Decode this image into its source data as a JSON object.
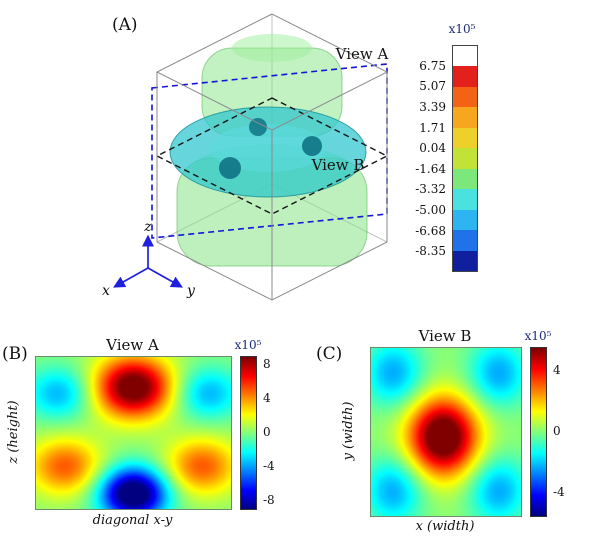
{
  "chart_data": [
    {
      "id": "panel-a-3d",
      "type": "isosurface-3d",
      "panel_label": "(A)",
      "view_a_label": "View A",
      "view_b_label": "View B",
      "axis_triad": {
        "x": "x",
        "y": "y",
        "z": "z"
      },
      "colorbar": {
        "exponent": "x10⁵",
        "ticks": [
          "6.75",
          "5.07",
          "3.39",
          "1.71",
          "0.04",
          "-1.64",
          "-3.32",
          "-5.00",
          "-6.68",
          "-8.35"
        ],
        "segment_colors": [
          "#ffffff",
          "#e2201c",
          "#f26316",
          "#f6a71e",
          "#eed02a",
          "#c3e238",
          "#7ce87c",
          "#49e2df",
          "#2fb4f2",
          "#1f72e8",
          "#101f9e"
        ]
      },
      "accent_colors": {
        "view_a": "#1414dd",
        "view_b": "#1a1a4e",
        "isosurface_green": "#86e486",
        "isosurface_teal": "#2cc6cf"
      }
    },
    {
      "id": "view-a-slice",
      "type": "heatmap",
      "panel_label": "(B)",
      "title": "View A",
      "xlabel": "diagonal x-y",
      "ylabel": "z (height)",
      "colormap": "jet",
      "vmin": -9,
      "vmax": 9,
      "colorbar": {
        "exponent": "x10⁵",
        "ticks": [
          8,
          4,
          0,
          -4,
          -8
        ]
      },
      "background_value": 0.2,
      "blobs": [
        {
          "x": 0.5,
          "y": 0.8,
          "sigma": 0.14,
          "amp": 10.0
        },
        {
          "x": 0.5,
          "y": 0.1,
          "sigma": 0.12,
          "amp": -11.0
        },
        {
          "x": 0.15,
          "y": 0.28,
          "sigma": 0.13,
          "amp": 5.0
        },
        {
          "x": 0.85,
          "y": 0.28,
          "sigma": 0.13,
          "amp": 5.0
        },
        {
          "x": 0.12,
          "y": 0.76,
          "sigma": 0.12,
          "amp": -3.8
        },
        {
          "x": 0.88,
          "y": 0.76,
          "sigma": 0.12,
          "amp": -3.8
        }
      ]
    },
    {
      "id": "view-b-slice",
      "type": "heatmap",
      "panel_label": "(C)",
      "title": "View B",
      "xlabel": "x (width)",
      "ylabel": "y (width)",
      "colormap": "jet",
      "vmin": -5.5,
      "vmax": 5.5,
      "colorbar": {
        "exponent": "x10⁵",
        "ticks": [
          4,
          0,
          -4
        ]
      },
      "background_value": 0.2,
      "blobs": [
        {
          "x": 0.48,
          "y": 0.47,
          "sigma": 0.16,
          "amp": 6.5
        },
        {
          "x": 0.15,
          "y": 0.15,
          "sigma": 0.14,
          "amp": -2.5
        },
        {
          "x": 0.85,
          "y": 0.15,
          "sigma": 0.14,
          "amp": -2.5
        },
        {
          "x": 0.15,
          "y": 0.85,
          "sigma": 0.14,
          "amp": -2.5
        },
        {
          "x": 0.85,
          "y": 0.85,
          "sigma": 0.14,
          "amp": -2.5
        }
      ]
    }
  ]
}
